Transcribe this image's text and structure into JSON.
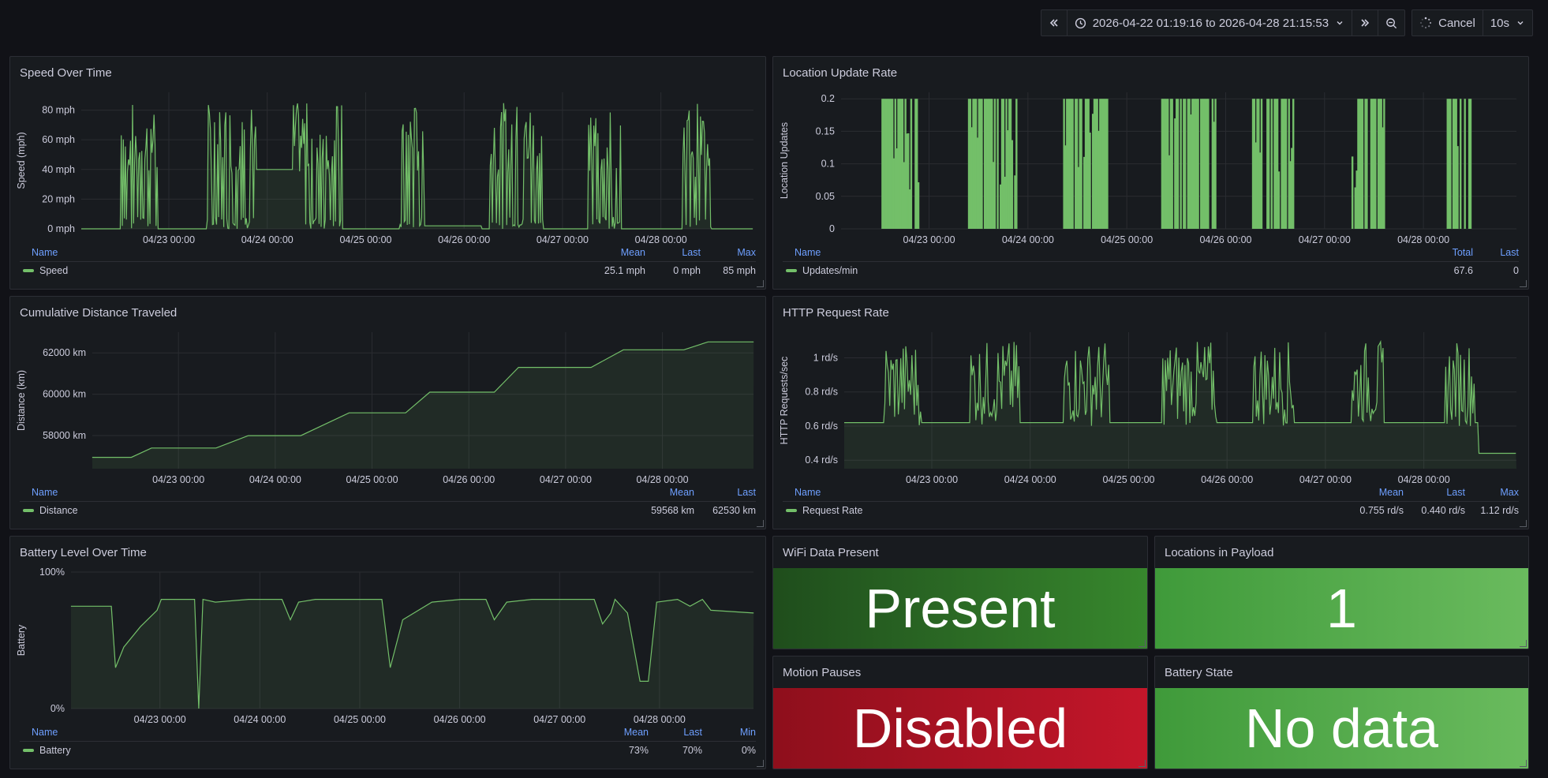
{
  "toolbar": {
    "time_range": "2026-04-22 01:19:16 to 2026-04-28 21:15:53",
    "cancel_label": "Cancel",
    "refresh_interval": "10s",
    "icons": [
      "angle-double-left-icon",
      "clock-icon",
      "chevron-down-icon",
      "angle-double-right-icon",
      "zoom-out-icon",
      "spinner-icon",
      "chevron-down-icon"
    ]
  },
  "colors": {
    "series": "#73bf69",
    "red": "#c4162a",
    "dark_green": "#37872d",
    "green": "#56a64b",
    "legend_header": "#6e9fff"
  },
  "panels": {
    "speed": {
      "title": "Speed Over Time",
      "legend": {
        "headers": [
          "Name",
          "Mean",
          "Last",
          "Max"
        ],
        "series": "Speed",
        "values": [
          "25.1 mph",
          "0 mph",
          "85 mph"
        ]
      }
    },
    "location": {
      "title": "Location Update Rate",
      "legend": {
        "headers": [
          "Name",
          "Total",
          "Last"
        ],
        "series": "Updates/min",
        "values": [
          "67.6",
          "0"
        ]
      }
    },
    "distance": {
      "title": "Cumulative Distance Traveled",
      "legend": {
        "headers": [
          "Name",
          "Mean",
          "Last"
        ],
        "series": "Distance",
        "values": [
          "59568 km",
          "62530 km"
        ]
      }
    },
    "http": {
      "title": "HTTP Request Rate",
      "legend": {
        "headers": [
          "Name",
          "Mean",
          "Last",
          "Max"
        ],
        "series": "Request Rate",
        "values": [
          "0.755 rd/s",
          "0.440 rd/s",
          "1.12 rd/s"
        ]
      }
    },
    "battery": {
      "title": "Battery Level Over Time",
      "legend": {
        "headers": [
          "Name",
          "Mean",
          "Last",
          "Min"
        ],
        "series": "Battery",
        "values": [
          "73%",
          "70%",
          "0%"
        ]
      }
    },
    "wifi": {
      "title": "WiFi Data Present",
      "value": "Present"
    },
    "locations_payload": {
      "title": "Locations in Payload",
      "value": "1"
    },
    "motion": {
      "title": "Motion Pauses",
      "value": "Disabled"
    },
    "battery_state": {
      "title": "Battery State",
      "value": "No data"
    }
  },
  "chart_data": [
    {
      "panel": "speed",
      "type": "line",
      "ylabel": "Speed (mph)",
      "yticks": [
        "0 mph",
        "20 mph",
        "40 mph",
        "60 mph",
        "80 mph"
      ],
      "ytick_values": [
        0,
        20,
        40,
        60,
        80
      ],
      "ylim": [
        0,
        92
      ],
      "xticks": [
        "04/23 00:00",
        "04/24 00:00",
        "04/25 00:00",
        "04/26 00:00",
        "04/27 00:00",
        "04/28 00:00"
      ],
      "xlim_hours": [
        1.32,
        165.26
      ],
      "active_windows_hours": [
        [
          11,
          20
        ],
        [
          32,
          44
        ],
        [
          53,
          65
        ],
        [
          79,
          85
        ],
        [
          101,
          114
        ],
        [
          125,
          133
        ],
        [
          148,
          155
        ]
      ],
      "max_value": 85,
      "mean_value": 25.1,
      "last_value": 0,
      "grid": true,
      "legend": "bottom"
    },
    {
      "panel": "location",
      "type": "bar",
      "ylabel": "Location Updates",
      "yticks": [
        "0",
        "0.05",
        "0.1",
        "0.15",
        "0.2"
      ],
      "ytick_values": [
        0,
        0.05,
        0.1,
        0.15,
        0.2
      ],
      "ylim": [
        0,
        0.21
      ],
      "xticks": [
        "04/23 00:00",
        "04/24 00:00",
        "04/25 00:00",
        "04/26 00:00",
        "04/27 00:00",
        "04/28 00:00"
      ],
      "xlim_hours": [
        1.32,
        165.26
      ],
      "active_windows_hours": [
        [
          11,
          20
        ],
        [
          32,
          44
        ],
        [
          55,
          66
        ],
        [
          79,
          92
        ],
        [
          101,
          111
        ],
        [
          125,
          133
        ],
        [
          148,
          154
        ]
      ],
      "max_value": 0.2,
      "total_value": 67.6,
      "last_value": 0,
      "grid": true,
      "legend": "bottom"
    },
    {
      "panel": "distance",
      "type": "area",
      "ylabel": "Distance (km)",
      "yticks": [
        "58000 km",
        "60000 km",
        "62000 km"
      ],
      "ytick_values": [
        58000,
        60000,
        62000
      ],
      "ylim": [
        56400,
        63000
      ],
      "xticks": [
        "04/23 00:00",
        "04/24 00:00",
        "04/25 00:00",
        "04/26 00:00",
        "04/27 00:00",
        "04/28 00:00"
      ],
      "xlim_hours": [
        1.32,
        165.26
      ],
      "steps": [
        [
          1.3,
          56950
        ],
        [
          11,
          56950
        ],
        [
          16,
          57400
        ],
        [
          32,
          57400
        ],
        [
          40,
          58000
        ],
        [
          53,
          58000
        ],
        [
          65,
          59100
        ],
        [
          79,
          59100
        ],
        [
          85,
          60100
        ],
        [
          101,
          60100
        ],
        [
          107,
          61300
        ],
        [
          125,
          61300
        ],
        [
          133,
          62150
        ],
        [
          148,
          62150
        ],
        [
          154,
          62530
        ],
        [
          165.3,
          62530
        ]
      ],
      "mean_value": 59568,
      "last_value": 62530,
      "grid": true,
      "legend": "bottom"
    },
    {
      "panel": "http",
      "type": "line",
      "ylabel": "HTTP Requests/sec",
      "yticks": [
        "0.4 rd/s",
        "0.6 rd/s",
        "0.8 rd/s",
        "1 rd/s"
      ],
      "ytick_values": [
        0.4,
        0.6,
        0.8,
        1.0
      ],
      "ylim": [
        0.35,
        1.15
      ],
      "xticks": [
        "04/23 00:00",
        "04/24 00:00",
        "04/25 00:00",
        "04/26 00:00",
        "04/27 00:00",
        "04/28 00:00"
      ],
      "xlim_hours": [
        1.32,
        165.26
      ],
      "baseline": 0.62,
      "active_windows_hours": [
        [
          11,
          20
        ],
        [
          32,
          44
        ],
        [
          55,
          66
        ],
        [
          79,
          92
        ],
        [
          101,
          111
        ],
        [
          125,
          133
        ],
        [
          148,
          155
        ]
      ],
      "mean_value": 0.755,
      "last_value": 0.44,
      "max_value": 1.12,
      "grid": true,
      "legend": "bottom"
    },
    {
      "panel": "battery",
      "type": "area",
      "ylabel": "Battery",
      "yticks": [
        "0%",
        "100%"
      ],
      "ytick_values": [
        0,
        100
      ],
      "ylim": [
        0,
        100
      ],
      "xticks": [
        "04/23 00:00",
        "04/24 00:00",
        "04/25 00:00",
        "04/26 00:00",
        "04/27 00:00",
        "04/28 00:00"
      ],
      "xlim_hours": [
        1.32,
        165.26
      ],
      "points": [
        [
          1.3,
          75
        ],
        [
          11,
          75
        ],
        [
          12,
          30
        ],
        [
          14,
          45
        ],
        [
          18,
          60
        ],
        [
          22,
          72
        ],
        [
          23,
          80
        ],
        [
          31,
          80
        ],
        [
          32,
          0
        ],
        [
          33,
          80
        ],
        [
          36,
          78
        ],
        [
          44,
          80
        ],
        [
          52,
          80
        ],
        [
          54,
          65
        ],
        [
          56,
          78
        ],
        [
          60,
          80
        ],
        [
          76,
          80
        ],
        [
          78,
          30
        ],
        [
          81,
          65
        ],
        [
          88,
          78
        ],
        [
          95,
          80
        ],
        [
          101,
          80
        ],
        [
          103,
          65
        ],
        [
          106,
          78
        ],
        [
          112,
          80
        ],
        [
          127,
          80
        ],
        [
          129,
          62
        ],
        [
          131,
          70
        ],
        [
          132,
          80
        ],
        [
          135,
          70
        ],
        [
          138,
          20
        ],
        [
          140,
          20
        ],
        [
          142,
          78
        ],
        [
          147,
          80
        ],
        [
          150,
          75
        ],
        [
          153,
          80
        ],
        [
          155,
          72
        ],
        [
          165.3,
          70
        ]
      ],
      "mean_value": 73,
      "last_value": 70,
      "min_value": 0,
      "grid": true,
      "legend": "bottom"
    }
  ]
}
